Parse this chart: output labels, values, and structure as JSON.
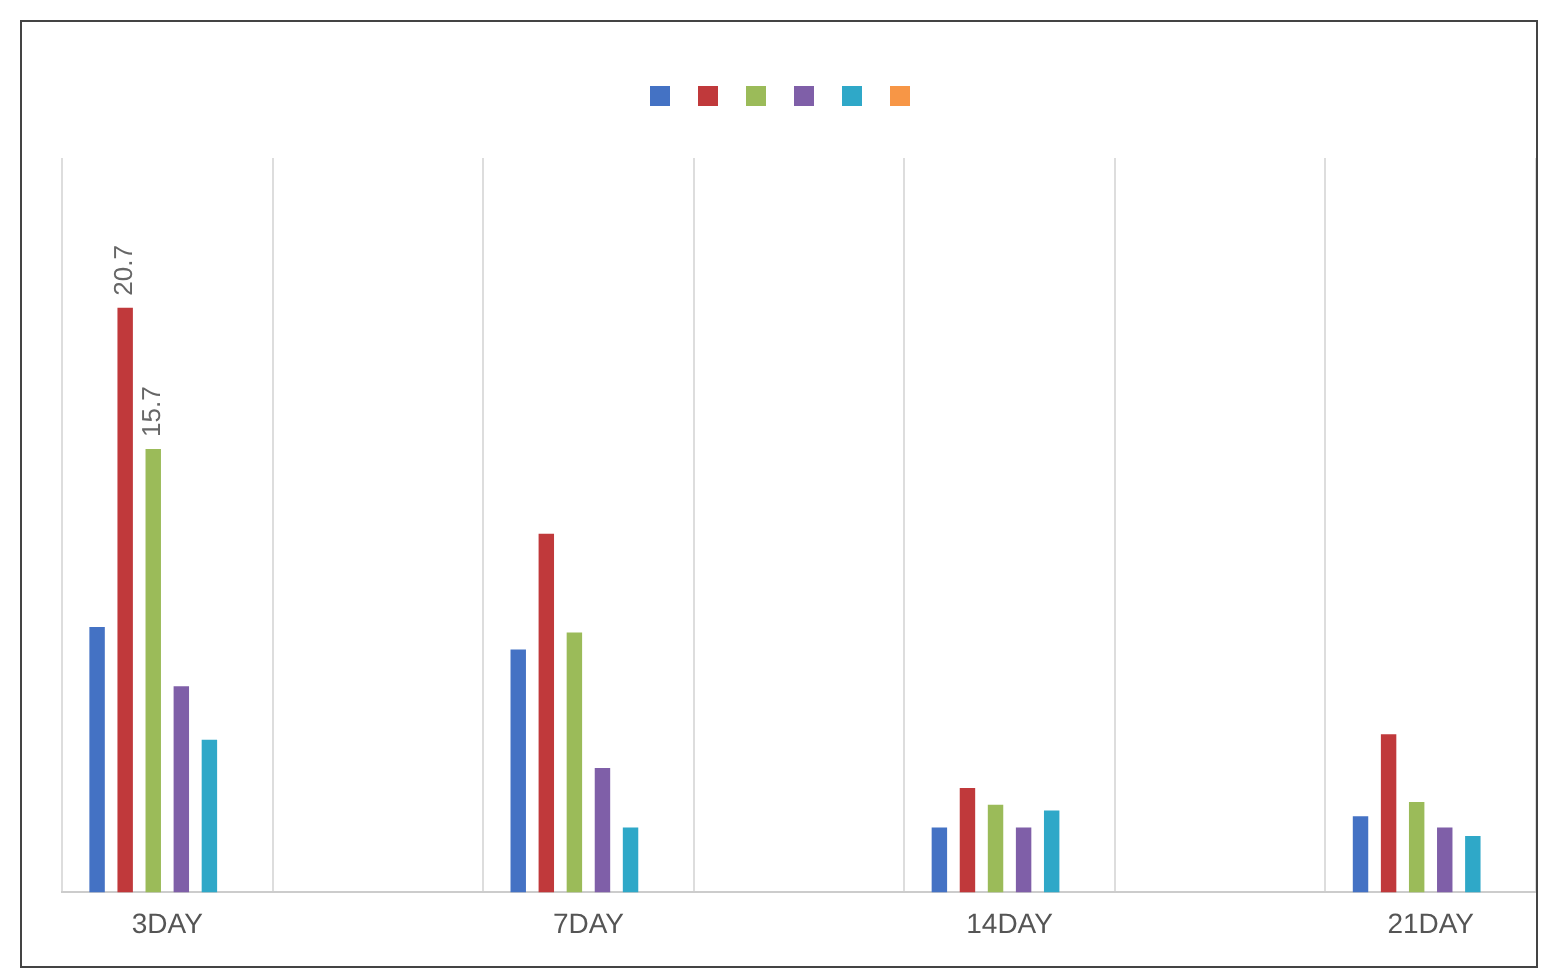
{
  "chart_data": {
    "type": "bar",
    "categories": [
      "3DAY",
      null,
      "7DAY",
      null,
      "14DAY",
      null,
      "21DAY"
    ],
    "series": [
      {
        "color": "#4472c4",
        "values": [
          9.4,
          null,
          8.6,
          null,
          2.3,
          null,
          2.7
        ]
      },
      {
        "color": "#c0393b",
        "values": [
          20.7,
          null,
          12.7,
          null,
          3.7,
          null,
          5.6
        ],
        "value_labels": [
          "20.7",
          null,
          null,
          null,
          null,
          null,
          null
        ]
      },
      {
        "color": "#9bbb59",
        "values": [
          15.7,
          null,
          9.2,
          null,
          3.1,
          null,
          3.2
        ],
        "value_labels": [
          "15.7",
          null,
          null,
          null,
          null,
          null,
          null
        ]
      },
      {
        "color": "#7f5fa8",
        "values": [
          7.3,
          null,
          4.4,
          null,
          2.3,
          null,
          2.3
        ]
      },
      {
        "color": "#2fa8c8",
        "values": [
          5.4,
          null,
          2.3,
          null,
          2.9,
          null,
          2.0
        ]
      },
      {
        "color": "#f79646",
        "values": [
          null,
          null,
          null,
          null,
          null,
          null,
          null
        ]
      }
    ],
    "ylim": [
      0,
      26
    ],
    "grid": "x",
    "tick_labels": "x"
  }
}
